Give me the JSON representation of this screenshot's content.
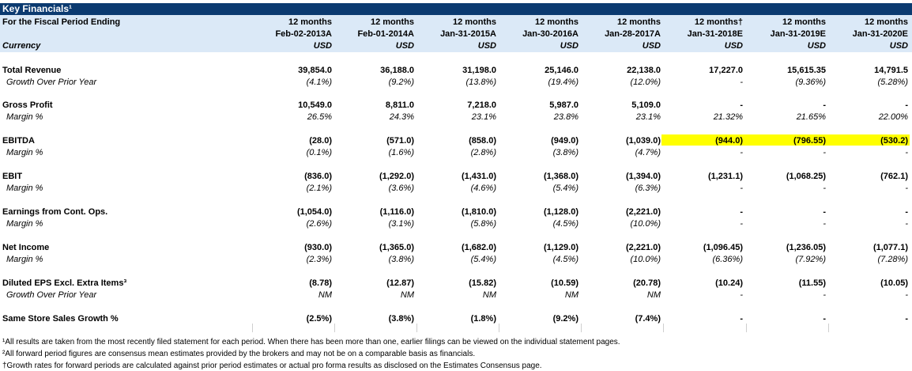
{
  "title": "Key Financials¹",
  "header": {
    "row1_label": "For the Fiscal Period Ending",
    "row3_label": "Currency",
    "columns": [
      {
        "period": "12 months",
        "date": "Feb-02-2013A",
        "currency": "USD"
      },
      {
        "period": "12 months",
        "date": "Feb-01-2014A",
        "currency": "USD"
      },
      {
        "period": "12 months",
        "date": "Jan-31-2015A",
        "currency": "USD"
      },
      {
        "period": "12 months",
        "date": "Jan-30-2016A",
        "currency": "USD"
      },
      {
        "period": "12 months",
        "date": "Jan-28-2017A",
        "currency": "USD"
      },
      {
        "period": "12 months†",
        "date": "Jan-31-2018E",
        "currency": "USD"
      },
      {
        "period": "12 months",
        "date": "Jan-31-2019E",
        "currency": "USD"
      },
      {
        "period": "12 months",
        "date": "Jan-31-2020E",
        "currency": "USD"
      }
    ]
  },
  "rows": [
    {
      "label": "Total Revenue",
      "values": [
        "39,854.0",
        "36,188.0",
        "31,198.0",
        "25,146.0",
        "22,138.0",
        "17,227.0",
        "15,615.35",
        "14,791.5"
      ],
      "sub_label": "Growth Over Prior Year",
      "sub_values": [
        "(4.1%)",
        "(9.2%)",
        "(13.8%)",
        "(19.4%)",
        "(12.0%)",
        "-",
        "(9.36%)",
        "(5.28%)"
      ]
    },
    {
      "label": "Gross Profit",
      "values": [
        "10,549.0",
        "8,811.0",
        "7,218.0",
        "5,987.0",
        "5,109.0",
        "-",
        "-",
        "-"
      ],
      "sub_label": "Margin %",
      "sub_values": [
        "26.5%",
        "24.3%",
        "23.1%",
        "23.8%",
        "23.1%",
        "21.32%",
        "21.65%",
        "22.00%"
      ]
    },
    {
      "label": "EBITDA",
      "values": [
        "(28.0)",
        "(571.0)",
        "(858.0)",
        "(949.0)",
        "(1,039.0)",
        "(944.0)",
        "(796.55)",
        "(530.2)"
      ],
      "sub_label": "Margin %",
      "sub_values": [
        "(0.1%)",
        "(1.6%)",
        "(2.8%)",
        "(3.8%)",
        "(4.7%)",
        "-",
        "-",
        "-"
      ]
    },
    {
      "label": "EBIT",
      "values": [
        "(836.0)",
        "(1,292.0)",
        "(1,431.0)",
        "(1,368.0)",
        "(1,394.0)",
        "(1,231.1)",
        "(1,068.25)",
        "(762.1)"
      ],
      "sub_label": "Margin %",
      "sub_values": [
        "(2.1%)",
        "(3.6%)",
        "(4.6%)",
        "(5.4%)",
        "(6.3%)",
        "-",
        "-",
        "-"
      ]
    },
    {
      "label": "Earnings from Cont. Ops.",
      "values": [
        "(1,054.0)",
        "(1,116.0)",
        "(1,810.0)",
        "(1,128.0)",
        "(2,221.0)",
        "-",
        "-",
        "-"
      ],
      "sub_label": "Margin %",
      "sub_values": [
        "(2.6%)",
        "(3.1%)",
        "(5.8%)",
        "(4.5%)",
        "(10.0%)",
        "-",
        "-",
        "-"
      ]
    },
    {
      "label": "Net Income",
      "values": [
        "(930.0)",
        "(1,365.0)",
        "(1,682.0)",
        "(1,129.0)",
        "(2,221.0)",
        "(1,096.45)",
        "(1,236.05)",
        "(1,077.1)"
      ],
      "sub_label": "Margin %",
      "sub_values": [
        "(2.3%)",
        "(3.8%)",
        "(5.4%)",
        "(4.5%)",
        "(10.0%)",
        "(6.36%)",
        "(7.92%)",
        "(7.28%)"
      ]
    },
    {
      "label": "Diluted EPS Excl. Extra Items³",
      "values": [
        "(8.78)",
        "(12.87)",
        "(15.82)",
        "(10.59)",
        "(20.78)",
        "(10.24)",
        "(11.55)",
        "(10.05)"
      ],
      "sub_label": "Growth Over Prior Year",
      "sub_values": [
        "NM",
        "NM",
        "NM",
        "NM",
        "NM",
        "-",
        "-",
        "-"
      ]
    },
    {
      "label": "Same Store Sales Growth %",
      "values": [
        "(2.5%)",
        "(3.8%)",
        "(1.8%)",
        "(9.2%)",
        "(7.4%)",
        "-",
        "-",
        "-"
      ],
      "sub_label": "",
      "sub_values": []
    }
  ],
  "highlight_color": "#ffff00",
  "header_color": "#0b3a70",
  "header_band_color": "#dbe9f7",
  "footnotes": [
    "¹All results are taken from the most recently filed statement for each period. When there has been more than one, earlier filings can be viewed on the individual statement pages.",
    "²All forward period figures are consensus mean estimates provided by the brokers and may not be on a comparable basis as financials.",
    "†Growth rates for forward periods are calculated against prior period estimates or actual pro forma results as disclosed on the Estimates Consensus page."
  ]
}
